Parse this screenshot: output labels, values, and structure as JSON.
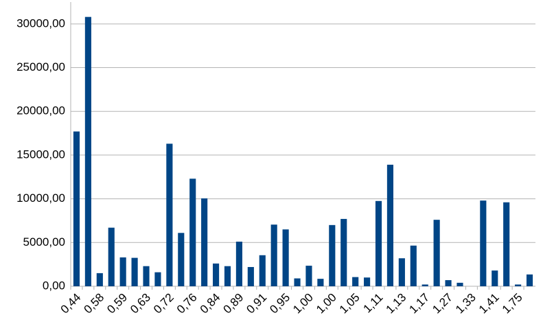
{
  "chart_data": {
    "type": "bar",
    "categories": [
      "0,44",
      null,
      "0,58",
      null,
      "0,59",
      null,
      "0,63",
      null,
      "0,72",
      null,
      "0,76",
      null,
      "0,84",
      null,
      "0,89",
      null,
      "0,91",
      null,
      "0,95",
      null,
      "1,00",
      null,
      "1,00",
      null,
      "1,05",
      null,
      "1,11",
      null,
      "1,13",
      null,
      "1,17",
      null,
      "1,27",
      null,
      "1,33",
      null,
      "1,41",
      null,
      "1,75",
      null
    ],
    "values": [
      17700,
      30800,
      1500,
      6700,
      3300,
      3250,
      2300,
      1600,
      16300,
      6100,
      12300,
      10050,
      2600,
      2300,
      5100,
      2200,
      3550,
      7050,
      6500,
      900,
      2350,
      850,
      7000,
      7700,
      1050,
      1000,
      9750,
      13900,
      3200,
      4650,
      200,
      7600,
      700,
      400,
      0,
      9800,
      1800,
      9600,
      200,
      1350
    ],
    "color": "#004586",
    "ylim": [
      0,
      32500
    ],
    "yticks": [
      {
        "value": 0,
        "label": "0,00"
      },
      {
        "value": 5000,
        "label": "5000,00"
      },
      {
        "value": 10000,
        "label": "10000,00"
      },
      {
        "value": 15000,
        "label": "15000,00"
      },
      {
        "value": 20000,
        "label": "20000,00"
      },
      {
        "value": 25000,
        "label": "25000,00"
      },
      {
        "value": 30000,
        "label": "30000,00"
      }
    ],
    "grid": true
  }
}
